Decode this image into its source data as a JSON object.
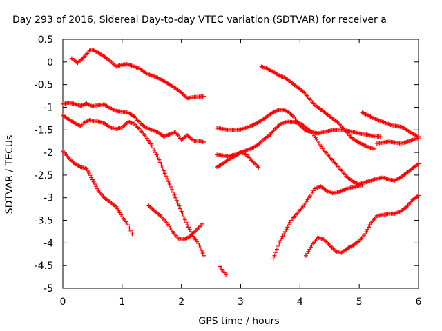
{
  "chart_data": {
    "type": "scatter",
    "title": "Day 293 of 2016, Sidereal Day-to-day VTEC variation (SDTVAR) for receiver a",
    "xlabel": "GPS time / hours",
    "ylabel": "SDTVAR / TECUs",
    "xlim": [
      0,
      6
    ],
    "ylim": [
      -5,
      0.5
    ],
    "xticks": [
      "0",
      "1",
      "2",
      "3",
      "4",
      "5",
      "6"
    ],
    "yticks": [
      "0.5",
      "0",
      "-0.5",
      "-1",
      "-1.5",
      "-2",
      "-2.5",
      "-3",
      "-3.5",
      "-4",
      "-4.5",
      "-5"
    ],
    "marker": "cross",
    "grid": false,
    "legend": "none",
    "color": "#ff0000",
    "series": [
      {
        "x": [
          0.15,
          0.25,
          0.35,
          0.45,
          0.5,
          0.6,
          0.7,
          0.8,
          0.9,
          1.0,
          1.1,
          1.2,
          1.3,
          1.4,
          1.5,
          1.6,
          1.7,
          1.8,
          1.9,
          2.0,
          2.1,
          2.2,
          2.3,
          2.38
        ],
        "y": [
          0.08,
          -0.02,
          0.1,
          0.25,
          0.27,
          0.2,
          0.12,
          0.02,
          -0.1,
          -0.06,
          -0.05,
          -0.1,
          -0.15,
          -0.25,
          -0.3,
          -0.35,
          -0.42,
          -0.5,
          -0.58,
          -0.68,
          -0.8,
          -0.78,
          -0.77,
          -0.76
        ]
      },
      {
        "x": [
          0.0,
          0.1,
          0.2,
          0.3,
          0.4,
          0.5,
          0.6,
          0.7,
          0.8,
          0.9,
          1.0,
          1.1,
          1.2,
          1.3,
          1.4,
          1.5,
          1.6,
          1.7,
          1.8,
          1.9,
          2.0,
          2.1,
          2.2,
          2.3,
          2.38
        ],
        "y": [
          -0.93,
          -0.9,
          -0.93,
          -0.97,
          -0.92,
          -0.98,
          -0.95,
          -0.94,
          -1.02,
          -1.08,
          -1.1,
          -1.12,
          -1.2,
          -1.35,
          -1.45,
          -1.5,
          -1.55,
          -1.65,
          -1.6,
          -1.55,
          -1.72,
          -1.62,
          -1.74,
          -1.75,
          -1.77
        ]
      },
      {
        "x": [
          0.0,
          0.1,
          0.2,
          0.3,
          0.35,
          0.45,
          0.5,
          0.6,
          0.7,
          0.8,
          0.9,
          1.0,
          1.1,
          1.2,
          1.3,
          1.4,
          1.5,
          1.6,
          1.7,
          1.8,
          1.9,
          2.0,
          2.1,
          2.2,
          2.3,
          2.38
        ],
        "y": [
          -1.18,
          -1.27,
          -1.35,
          -1.42,
          -1.35,
          -1.28,
          -1.3,
          -1.32,
          -1.35,
          -1.45,
          -1.48,
          -1.45,
          -1.32,
          -1.36,
          -1.5,
          -1.65,
          -1.85,
          -2.1,
          -2.4,
          -2.7,
          -3.0,
          -3.3,
          -3.6,
          -3.85,
          -4.05,
          -4.28
        ]
      },
      {
        "x": [
          0.0,
          0.1,
          0.2,
          0.3,
          0.4,
          0.5,
          0.6,
          0.7,
          0.8,
          0.9,
          1.0,
          1.1,
          1.17
        ],
        "y": [
          -1.97,
          -2.12,
          -2.25,
          -2.32,
          -2.36,
          -2.6,
          -2.85,
          -3.0,
          -3.1,
          -3.2,
          -3.42,
          -3.6,
          -3.8
        ]
      },
      {
        "x": [
          1.45,
          1.55,
          1.65,
          1.75,
          1.85,
          1.95,
          2.05,
          2.15,
          2.25,
          2.35
        ],
        "y": [
          -3.18,
          -3.3,
          -3.4,
          -3.55,
          -3.75,
          -3.9,
          -3.92,
          -3.85,
          -3.72,
          -3.58
        ]
      },
      {
        "x": [
          2.6,
          2.7,
          2.8,
          2.9,
          3.0,
          3.1,
          3.2,
          3.3,
          3.4,
          3.5,
          3.6,
          3.7,
          3.8,
          3.9,
          4.0,
          4.1,
          4.2,
          4.3,
          4.4,
          4.5,
          4.6,
          4.7,
          4.8,
          4.9,
          5.0,
          5.1,
          5.2,
          5.35
        ],
        "y": [
          -1.46,
          -1.48,
          -1.5,
          -1.5,
          -1.49,
          -1.45,
          -1.4,
          -1.33,
          -1.25,
          -1.15,
          -1.08,
          -1.05,
          -1.1,
          -1.22,
          -1.4,
          -1.52,
          -1.55,
          -1.58,
          -1.55,
          -1.52,
          -1.5,
          -1.5,
          -1.52,
          -1.55,
          -1.58,
          -1.6,
          -1.63,
          -1.65
        ]
      },
      {
        "x": [
          2.6,
          2.7,
          2.8,
          2.9,
          3.0,
          3.1,
          3.2,
          3.3
        ],
        "y": [
          -2.05,
          -2.07,
          -2.08,
          -2.05,
          -2.0,
          -2.05,
          -2.2,
          -2.33
        ]
      },
      {
        "x": [
          2.6,
          2.7,
          2.8,
          2.9,
          3.0,
          3.1,
          3.2,
          3.3,
          3.4,
          3.5,
          3.6,
          3.7,
          3.8,
          3.9,
          4.0,
          4.1,
          4.2,
          4.3,
          4.4,
          4.5,
          4.6,
          4.7,
          4.8,
          4.9,
          5.0,
          5.1,
          5.2,
          5.3,
          5.4,
          5.5,
          5.6,
          5.7,
          5.8,
          5.9,
          6.0
        ],
        "y": [
          -2.32,
          -2.25,
          -2.15,
          -2.08,
          -2.0,
          -1.95,
          -1.9,
          -1.82,
          -1.7,
          -1.6,
          -1.45,
          -1.35,
          -1.32,
          -1.33,
          -1.35,
          -1.45,
          -1.55,
          -1.75,
          -1.95,
          -2.1,
          -2.25,
          -2.4,
          -2.55,
          -2.65,
          -2.7,
          -2.66,
          -2.62,
          -2.58,
          -2.55,
          -2.6,
          -2.62,
          -2.55,
          -2.45,
          -2.35,
          -2.25
        ]
      },
      {
        "x": [
          2.65,
          2.7,
          2.75
        ],
        "y": [
          -4.52,
          -4.62,
          -4.7
        ]
      },
      {
        "x": [
          3.35,
          3.45,
          3.55,
          3.65,
          3.75,
          3.85,
          3.95,
          4.05,
          4.15,
          4.25,
          4.35,
          4.45,
          4.55,
          4.65,
          4.75,
          4.85,
          4.95,
          5.05,
          5.15,
          5.25
        ],
        "y": [
          -0.1,
          -0.15,
          -0.22,
          -0.3,
          -0.35,
          -0.45,
          -0.55,
          -0.65,
          -0.8,
          -0.95,
          -1.05,
          -1.15,
          -1.25,
          -1.35,
          -1.5,
          -1.65,
          -1.75,
          -1.82,
          -1.88,
          -1.92
        ]
      },
      {
        "x": [
          5.05,
          5.15,
          5.25,
          5.35,
          5.45,
          5.55,
          5.65,
          5.75,
          5.85,
          5.95,
          6.0
        ],
        "y": [
          -1.12,
          -1.18,
          -1.25,
          -1.3,
          -1.35,
          -1.4,
          -1.42,
          -1.45,
          -1.55,
          -1.62,
          -1.65
        ]
      },
      {
        "x": [
          5.3,
          5.4,
          5.5,
          5.6,
          5.7,
          5.8,
          5.9,
          6.0
        ],
        "y": [
          -1.8,
          -1.78,
          -1.76,
          -1.78,
          -1.8,
          -1.77,
          -1.72,
          -1.68
        ]
      },
      {
        "x": [
          3.55,
          3.65,
          3.75,
          3.85,
          3.95,
          4.05,
          4.15,
          4.25,
          4.35,
          4.45,
          4.55,
          4.65,
          4.75,
          4.85,
          4.95,
          5.05
        ],
        "y": [
          -4.35,
          -4.0,
          -3.75,
          -3.5,
          -3.35,
          -3.2,
          -3.0,
          -2.8,
          -2.75,
          -2.85,
          -2.9,
          -2.88,
          -2.82,
          -2.78,
          -2.75,
          -2.72
        ]
      },
      {
        "x": [
          4.1,
          4.2,
          4.3,
          4.4,
          4.5,
          4.6,
          4.7,
          4.8,
          4.9,
          5.0,
          5.1,
          5.2,
          5.3,
          5.4,
          5.5,
          5.6,
          5.7,
          5.8,
          5.9,
          6.0
        ],
        "y": [
          -4.28,
          -4.05,
          -3.88,
          -3.92,
          -4.05,
          -4.18,
          -4.22,
          -4.12,
          -4.05,
          -3.95,
          -3.8,
          -3.55,
          -3.4,
          -3.38,
          -3.35,
          -3.35,
          -3.3,
          -3.2,
          -3.05,
          -2.95
        ]
      }
    ]
  }
}
